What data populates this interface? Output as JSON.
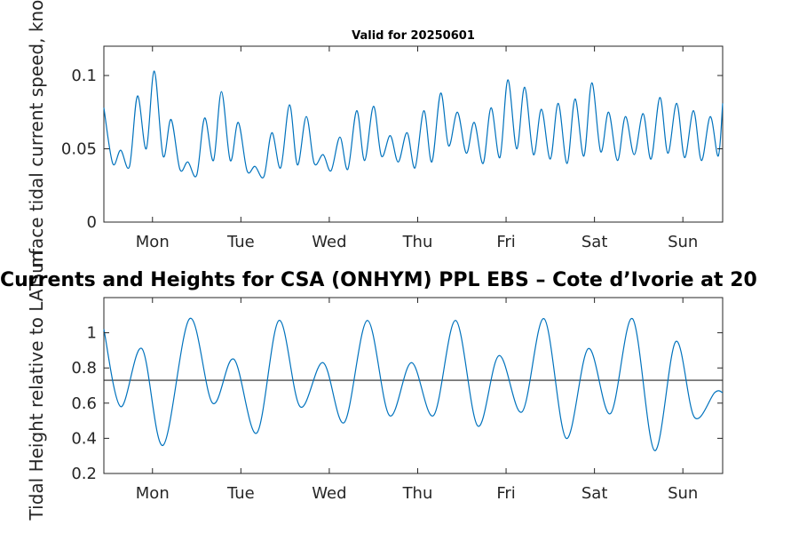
{
  "chart_data": [
    {
      "type": "line",
      "title": "Valid for 20250601",
      "ylabel": "Surface tidal current speed, knots",
      "categories": [
        "Mon",
        "Tue",
        "Wed",
        "Thu",
        "Fri",
        "Sat",
        "Sun"
      ],
      "xlim": [
        0,
        7
      ],
      "ylim": [
        0,
        0.12
      ],
      "yticks": [
        0,
        0.05,
        0.1
      ],
      "ytick_labels": [
        "0",
        "0.05",
        "0.1"
      ],
      "grid": false,
      "series": [
        {
          "color": "#0072BD",
          "x": [
            0.0,
            0.1,
            0.19,
            0.29,
            0.38,
            0.48,
            0.57,
            0.67,
            0.76,
            0.86,
            0.95,
            1.05,
            1.14,
            1.24,
            1.33,
            1.43,
            1.52,
            1.62,
            1.71,
            1.81,
            1.9,
            2.0,
            2.1,
            2.19,
            2.29,
            2.38,
            2.48,
            2.57,
            2.67,
            2.76,
            2.86,
            2.95,
            3.05,
            3.14,
            3.24,
            3.33,
            3.43,
            3.52,
            3.62,
            3.71,
            3.81,
            3.9,
            4.0,
            4.1,
            4.19,
            4.29,
            4.38,
            4.48,
            4.57,
            4.67,
            4.76,
            4.86,
            4.95,
            5.05,
            5.14,
            5.24,
            5.33,
            5.43,
            5.52,
            5.62,
            5.71,
            5.81,
            5.9,
            6.0,
            6.1,
            6.19,
            6.29,
            6.38,
            6.48,
            6.57,
            6.67,
            6.76,
            6.86,
            6.95,
            7.0
          ],
          "values": [
            0.078,
            0.04,
            0.049,
            0.038,
            0.086,
            0.05,
            0.103,
            0.045,
            0.07,
            0.036,
            0.041,
            0.032,
            0.071,
            0.042,
            0.089,
            0.042,
            0.068,
            0.035,
            0.038,
            0.031,
            0.061,
            0.037,
            0.08,
            0.039,
            0.072,
            0.04,
            0.046,
            0.035,
            0.058,
            0.036,
            0.076,
            0.042,
            0.079,
            0.045,
            0.059,
            0.041,
            0.061,
            0.037,
            0.076,
            0.041,
            0.088,
            0.052,
            0.075,
            0.047,
            0.068,
            0.04,
            0.078,
            0.044,
            0.097,
            0.05,
            0.092,
            0.046,
            0.077,
            0.043,
            0.081,
            0.04,
            0.084,
            0.045,
            0.095,
            0.048,
            0.075,
            0.042,
            0.072,
            0.046,
            0.074,
            0.043,
            0.085,
            0.047,
            0.081,
            0.044,
            0.076,
            0.042,
            0.072,
            0.045,
            0.081
          ]
        }
      ]
    },
    {
      "type": "line",
      "title": "Currents and Heights for CSA (ONHYM) PPL EBS  – Cote d’Ivorie at 20",
      "ylabel": "Tidal Height relative to LAT, m",
      "categories": [
        "Mon",
        "Tue",
        "Wed",
        "Thu",
        "Fri",
        "Sat",
        "Sun"
      ],
      "xlim": [
        0,
        7
      ],
      "ylim": [
        0.2,
        1.2
      ],
      "yticks": [
        0.2,
        0.4,
        0.6,
        0.8,
        1.0
      ],
      "ytick_labels": [
        "0.2",
        "0.4",
        "0.6",
        "0.8",
        "1"
      ],
      "grid": false,
      "reference_line": {
        "y": 0.73,
        "color": "#262626"
      },
      "series": [
        {
          "color": "#0072BD",
          "x": [
            0.0,
            0.19,
            0.43,
            0.67,
            0.97,
            1.23,
            1.47,
            1.73,
            1.98,
            2.22,
            2.48,
            2.72,
            2.98,
            3.23,
            3.48,
            3.73,
            3.98,
            4.23,
            4.47,
            4.73,
            4.98,
            5.23,
            5.48,
            5.73,
            5.98,
            6.23,
            6.47,
            6.68,
            6.91,
            7.0
          ],
          "values": [
            1.02,
            0.58,
            0.91,
            0.36,
            1.08,
            0.6,
            0.85,
            0.43,
            1.07,
            0.58,
            0.83,
            0.49,
            1.07,
            0.53,
            0.83,
            0.53,
            1.07,
            0.47,
            0.87,
            0.55,
            1.08,
            0.4,
            0.91,
            0.54,
            1.08,
            0.33,
            0.95,
            0.52,
            0.66,
            0.66
          ]
        }
      ]
    }
  ]
}
